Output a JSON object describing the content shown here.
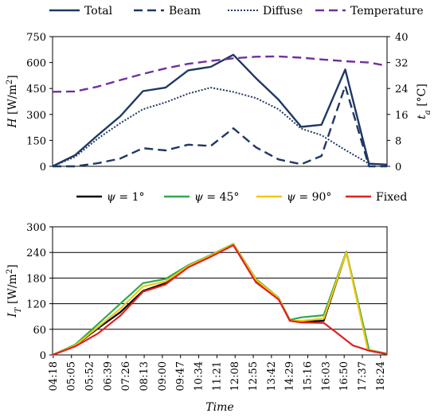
{
  "chart_data": [
    {
      "type": "line",
      "x": [
        "04:18",
        "05:05",
        "05:52",
        "06:39",
        "07:26",
        "08:13",
        "09:00",
        "09:47",
        "10:34",
        "11:21",
        "12:08",
        "12:55",
        "13:42",
        "14:29",
        "15:16",
        "16:03",
        "16:50",
        "17:37",
        "18:24"
      ],
      "ylabel_main": "H",
      "ylabel_unit": " [W/m",
      "ylabel_sup": "2",
      "ylabel_close": "]",
      "y2label_main": "t",
      "y2label_sub": "a",
      "y2label_unit": " [°C]",
      "ylim": [
        0,
        750
      ],
      "yticks": [
        0,
        150,
        300,
        450,
        600,
        750
      ],
      "y2lim": [
        0,
        40
      ],
      "y2ticks": [
        0,
        8,
        16,
        24,
        32,
        40
      ],
      "legend_position": "top",
      "series": [
        {
          "name": "Total",
          "axis": "left",
          "color": "#1F3864",
          "style": "solid",
          "values": [
            [
              0.0,
              0
            ],
            [
              1.0,
              65
            ],
            [
              2.0,
              180
            ],
            [
              3.0,
              290
            ],
            [
              4.0,
              435
            ],
            [
              5.0,
              455
            ],
            [
              6.0,
              555
            ],
            [
              7.0,
              575
            ],
            [
              8.0,
              645
            ],
            [
              9.0,
              510
            ],
            [
              10.0,
              385
            ],
            [
              11.0,
              228
            ],
            [
              11.9,
              240
            ],
            [
              12.95,
              560
            ],
            [
              14.0,
              15
            ],
            [
              14.8,
              10
            ]
          ]
        },
        {
          "name": "Beam",
          "axis": "left",
          "color": "#1F3864",
          "style": "dashed",
          "values": [
            [
              0.0,
              0
            ],
            [
              1.0,
              0
            ],
            [
              2.0,
              18
            ],
            [
              3.0,
              45
            ],
            [
              4.0,
              105
            ],
            [
              5.0,
              92
            ],
            [
              6.0,
              125
            ],
            [
              7.0,
              118
            ],
            [
              8.0,
              220
            ],
            [
              9.0,
              110
            ],
            [
              10.0,
              40
            ],
            [
              11.0,
              12
            ],
            [
              11.9,
              60
            ],
            [
              12.95,
              465
            ],
            [
              14.0,
              0
            ],
            [
              14.8,
              0
            ]
          ]
        },
        {
          "name": "Diffuse",
          "axis": "left",
          "color": "#1F3864",
          "style": "dotted",
          "values": [
            [
              0.0,
              0
            ],
            [
              1.0,
              55
            ],
            [
              2.0,
              160
            ],
            [
              3.0,
              250
            ],
            [
              4.0,
              330
            ],
            [
              5.0,
              370
            ],
            [
              6.0,
              420
            ],
            [
              7.0,
              455
            ],
            [
              8.0,
              430
            ],
            [
              9.0,
              395
            ],
            [
              10.0,
              330
            ],
            [
              11.0,
              218
            ],
            [
              11.9,
              180
            ],
            [
              12.95,
              95
            ],
            [
              14.0,
              15
            ],
            [
              14.8,
              10
            ]
          ]
        },
        {
          "name": "Temperature",
          "axis": "right",
          "color": "#7030A0",
          "style": "dashed",
          "values": [
            [
              0.0,
              23
            ],
            [
              1.0,
              23.1
            ],
            [
              2.0,
              24.6
            ],
            [
              3.0,
              26.6
            ],
            [
              4.0,
              28.5
            ],
            [
              5.0,
              30.2
            ],
            [
              6.0,
              31.6
            ],
            [
              7.0,
              32.5
            ],
            [
              8.0,
              33.3
            ],
            [
              9.0,
              33.8
            ],
            [
              10.0,
              33.9
            ],
            [
              11.0,
              33.5
            ],
            [
              12.0,
              32.9
            ],
            [
              13.0,
              32.4
            ],
            [
              14.0,
              32.0
            ],
            [
              14.8,
              31.0
            ]
          ]
        }
      ]
    },
    {
      "type": "line",
      "x": [
        "04:18",
        "05:05",
        "05:52",
        "06:39",
        "07:26",
        "08:13",
        "09:00",
        "09:47",
        "10:34",
        "11:21",
        "12:08",
        "12:55",
        "13:42",
        "14:29",
        "15:16",
        "16:03",
        "16:50",
        "17:37",
        "18:24"
      ],
      "xlabel": "Time",
      "ylabel_main": "I",
      "ylabel_sub": "T",
      "ylabel_unit": " [W/m",
      "ylabel_sup": "2",
      "ylabel_close": "]",
      "ylim": [
        0,
        300
      ],
      "yticks": [
        0,
        60,
        120,
        180,
        240,
        300
      ],
      "grid": true,
      "legend_position": "top",
      "series": [
        {
          "name": "ψ = 1°",
          "name_main": "ψ",
          "name_rest": " = 1°",
          "color": "#000000",
          "values": [
            [
              0.0,
              0
            ],
            [
              1.0,
              22
            ],
            [
              2.0,
              62
            ],
            [
              3.0,
              100
            ],
            [
              4.0,
              150
            ],
            [
              5.0,
              168
            ],
            [
              6.0,
              206
            ],
            [
              7.0,
              232
            ],
            [
              8.0,
              258
            ],
            [
              9.0,
              175
            ],
            [
              10.0,
              132
            ],
            [
              10.5,
              80
            ],
            [
              11.0,
              78
            ],
            [
              12.0,
              80
            ],
            [
              13.0,
              240
            ],
            [
              14.0,
              10
            ],
            [
              14.8,
              2
            ]
          ]
        },
        {
          "name": "ψ = 45°",
          "name_main": "ψ",
          "name_rest": " = 45°",
          "color": "#2FAA4A",
          "values": [
            [
              0.0,
              0
            ],
            [
              1.0,
              24
            ],
            [
              2.0,
              72
            ],
            [
              3.0,
              120
            ],
            [
              4.0,
              168
            ],
            [
              5.0,
              178
            ],
            [
              6.0,
              210
            ],
            [
              7.0,
              234
            ],
            [
              8.0,
              260
            ],
            [
              9.0,
              178
            ],
            [
              10.0,
              134
            ],
            [
              10.5,
              82
            ],
            [
              11.0,
              88
            ],
            [
              12.0,
              93
            ],
            [
              13.0,
              242
            ],
            [
              14.0,
              12
            ],
            [
              14.8,
              3
            ]
          ]
        },
        {
          "name": "ψ = 90°",
          "name_main": "ψ",
          "name_rest": " = 90°",
          "color": "#F2C80F",
          "values": [
            [
              0.0,
              0
            ],
            [
              1.0,
              22
            ],
            [
              2.0,
              65
            ],
            [
              3.0,
              108
            ],
            [
              4.0,
              160
            ],
            [
              5.0,
              172
            ],
            [
              6.0,
              208
            ],
            [
              7.0,
              233
            ],
            [
              8.0,
              259
            ],
            [
              9.0,
              176
            ],
            [
              10.0,
              133
            ],
            [
              10.5,
              80
            ],
            [
              11.0,
              80
            ],
            [
              12.0,
              85
            ],
            [
              13.0,
              240
            ],
            [
              13.95,
              12
            ],
            [
              14.8,
              2
            ]
          ]
        },
        {
          "name": "Fixed",
          "name_main": "Fixed",
          "name_rest": "",
          "color": "#E02020",
          "values": [
            [
              0.0,
              0
            ],
            [
              1.0,
              20
            ],
            [
              2.0,
              50
            ],
            [
              3.0,
              92
            ],
            [
              4.0,
              148
            ],
            [
              5.0,
              165
            ],
            [
              6.0,
              205
            ],
            [
              7.0,
              230
            ],
            [
              8.0,
              257
            ],
            [
              9.0,
              170
            ],
            [
              10.0,
              130
            ],
            [
              10.5,
              80
            ],
            [
              11.0,
              76
            ],
            [
              12.0,
              75
            ],
            [
              12.5,
              55
            ],
            [
              13.3,
              22
            ],
            [
              14.0,
              10
            ],
            [
              14.8,
              2
            ]
          ]
        }
      ]
    }
  ]
}
